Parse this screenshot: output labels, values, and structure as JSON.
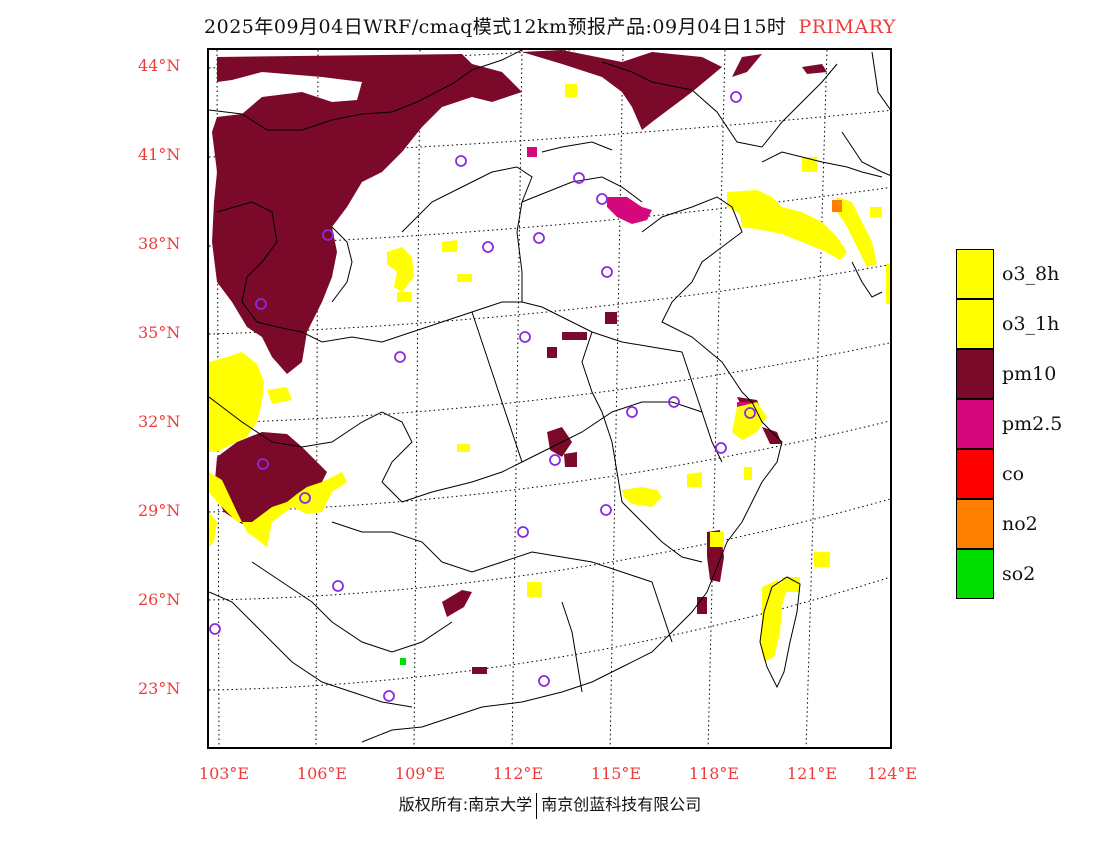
{
  "title": {
    "main": "2025年09月04日WRF/cmaq模式12km预报产品:09月04日15时",
    "tag": "PRIMARY"
  },
  "map": {
    "lat_labels": [
      "44°N",
      "41°N",
      "38°N",
      "35°N",
      "32°N",
      "29°N",
      "26°N",
      "23°N"
    ],
    "lon_labels": [
      "103°E",
      "106°E",
      "109°E",
      "112°E",
      "115°E",
      "118°E",
      "121°E",
      "124°E"
    ],
    "label_color": "#ee3b3b",
    "station_marker": "purple-circle"
  },
  "legend": {
    "items": [
      {
        "label": "o3_8h",
        "color": "#ffff00"
      },
      {
        "label": "o3_1h",
        "color": "#ffff00"
      },
      {
        "label": "pm10",
        "color": "#7b0a2a"
      },
      {
        "label": "pm2.5",
        "color": "#d4087a"
      },
      {
        "label": "co",
        "color": "#ff0000"
      },
      {
        "label": "no2",
        "color": "#ff7f00"
      },
      {
        "label": "so2",
        "color": "#00dd00"
      }
    ]
  },
  "footer": {
    "left": "版权所有:南京大学",
    "right": "南京创蓝科技有限公司"
  }
}
